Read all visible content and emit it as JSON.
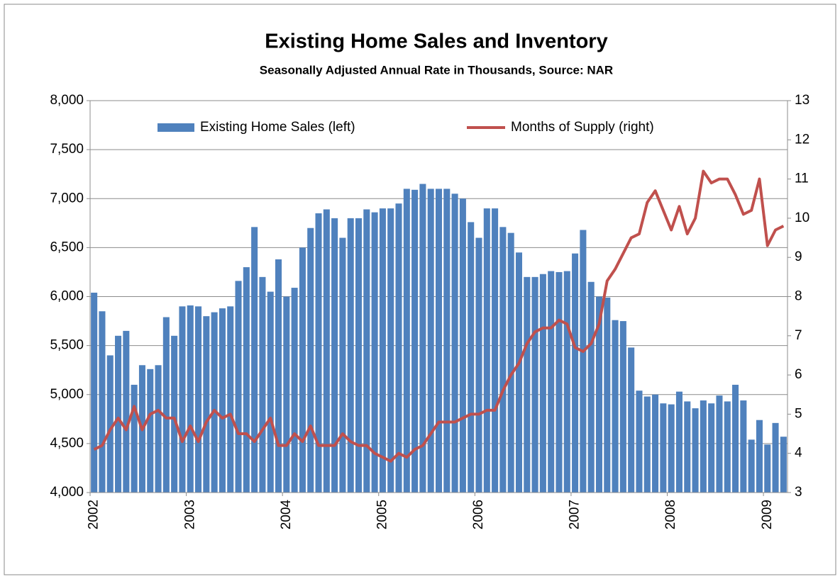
{
  "chart_data": {
    "type": "bar-line",
    "title": "Existing Home Sales and Inventory",
    "subtitle": "Seasonally Adjusted Annual Rate in Thousands, Source:  NAR",
    "categories": [
      "2002",
      null,
      null,
      null,
      null,
      null,
      null,
      null,
      null,
      null,
      null,
      null,
      "2003",
      null,
      null,
      null,
      null,
      null,
      null,
      null,
      null,
      null,
      null,
      null,
      "2004",
      null,
      null,
      null,
      null,
      null,
      null,
      null,
      null,
      null,
      null,
      null,
      "2005",
      null,
      null,
      null,
      null,
      null,
      null,
      null,
      null,
      null,
      null,
      null,
      "2006",
      null,
      null,
      null,
      null,
      null,
      null,
      null,
      null,
      null,
      null,
      null,
      "2007",
      null,
      null,
      null,
      null,
      null,
      null,
      null,
      null,
      null,
      null,
      null,
      "2008",
      null,
      null,
      null,
      null,
      null,
      null,
      null,
      null,
      null,
      null,
      null,
      "2009",
      null,
      null
    ],
    "series": [
      {
        "name": "Existing Home Sales (left)",
        "color": "#4f81bd",
        "type": "bar",
        "axis": "y",
        "values": [
          6040,
          5850,
          5400,
          5600,
          5650,
          5100,
          5300,
          5260,
          5300,
          5790,
          5600,
          5900,
          5910,
          5900,
          5800,
          5840,
          5880,
          5900,
          6160,
          6300,
          6710,
          6200,
          6050,
          6380,
          6000,
          6090,
          6500,
          6700,
          6850,
          6890,
          6800,
          6600,
          6800,
          6800,
          6890,
          6860,
          6900,
          6900,
          6950,
          7100,
          7090,
          7150,
          7100,
          7100,
          7100,
          7050,
          7000,
          6760,
          6600,
          6900,
          6900,
          6710,
          6650,
          6450,
          6200,
          6200,
          6230,
          6260,
          6250,
          6260,
          6440,
          6680,
          6150,
          6000,
          5990,
          5760,
          5750,
          5480,
          5040,
          4980,
          5000,
          4910,
          4900,
          5030,
          4930,
          4860,
          4940,
          4910,
          4990,
          4930,
          5100,
          4940,
          4540,
          4740,
          4490,
          4710,
          4570
        ]
      },
      {
        "name": "Months of Supply (right)",
        "color": "#c0504d",
        "type": "line",
        "axis": "y2",
        "values": [
          4.1,
          4.2,
          4.6,
          4.9,
          4.6,
          5.2,
          4.6,
          5.0,
          5.1,
          4.9,
          4.9,
          4.3,
          4.7,
          4.3,
          4.8,
          5.1,
          4.9,
          5.0,
          4.5,
          4.5,
          4.3,
          4.6,
          4.9,
          4.2,
          4.2,
          4.5,
          4.3,
          4.7,
          4.2,
          4.2,
          4.2,
          4.5,
          4.3,
          4.2,
          4.2,
          4.0,
          3.9,
          3.8,
          4.0,
          3.9,
          4.1,
          4.2,
          4.5,
          4.8,
          4.8,
          4.8,
          4.9,
          5.0,
          5.0,
          5.1,
          5.1,
          5.6,
          6.0,
          6.3,
          6.8,
          7.1,
          7.2,
          7.2,
          7.4,
          7.3,
          6.7,
          6.6,
          6.8,
          7.3,
          8.4,
          8.7,
          9.1,
          9.5,
          9.6,
          10.4,
          10.7,
          10.2,
          9.7,
          10.3,
          9.6,
          10.0,
          11.2,
          10.9,
          11.0,
          11.0,
          10.6,
          10.1,
          10.2,
          11.0,
          9.3,
          9.7,
          9.8
        ]
      }
    ],
    "ylim": [
      4000,
      8000
    ],
    "yticks": [
      {
        "value": 4000,
        "label": "4,000"
      },
      {
        "value": 4500,
        "label": "4,500"
      },
      {
        "value": 5000,
        "label": "5,000"
      },
      {
        "value": 5500,
        "label": "5,500"
      },
      {
        "value": 6000,
        "label": "6,000"
      },
      {
        "value": 6500,
        "label": "6,500"
      },
      {
        "value": 7000,
        "label": "7,000"
      },
      {
        "value": 7500,
        "label": "7,500"
      },
      {
        "value": 8000,
        "label": "8,000"
      }
    ],
    "y2lim": [
      3,
      13
    ],
    "y2ticks": [
      3,
      4,
      5,
      6,
      7,
      8,
      9,
      10,
      11,
      12,
      13
    ],
    "grid": true,
    "legend": "top"
  }
}
